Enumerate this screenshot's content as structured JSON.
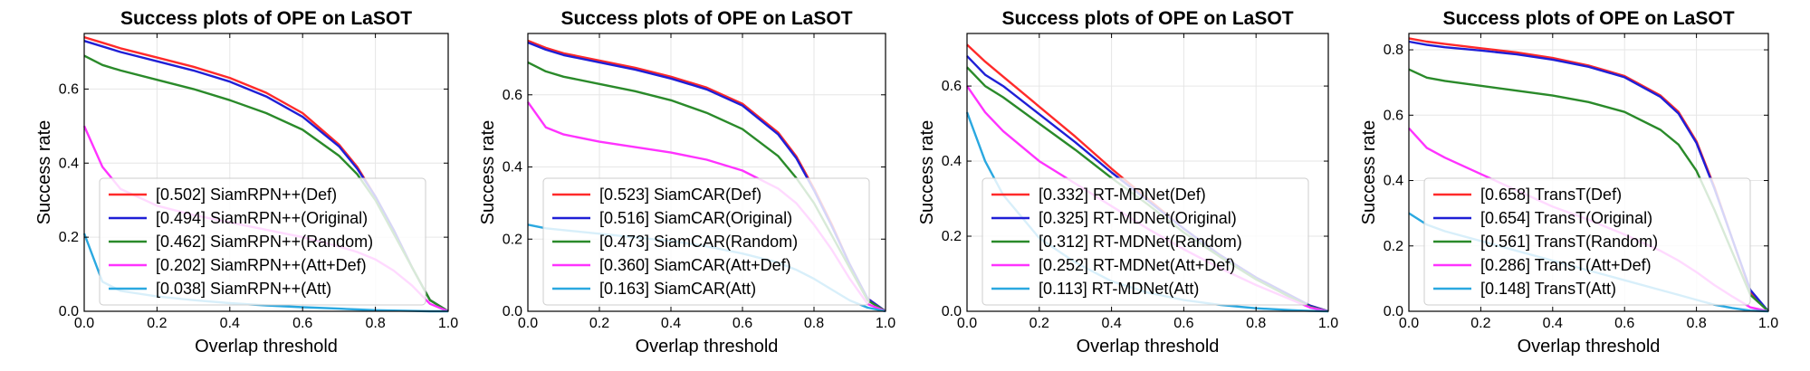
{
  "chart_data": [
    {
      "type": "line",
      "title": "Success plots of OPE on LaSOT",
      "xlabel": "Overlap threshold",
      "ylabel": "Success rate",
      "xlim": [
        0,
        1
      ],
      "ylim": [
        0,
        0.75
      ],
      "xticks": [
        "0.0",
        "0.2",
        "0.4",
        "0.6",
        "0.8",
        "1.0"
      ],
      "yticks": [
        "0.0",
        "0.2",
        "0.4",
        "0.6"
      ],
      "grid": true,
      "legend_position": "lower-left",
      "x": [
        0,
        0.05,
        0.1,
        0.2,
        0.3,
        0.4,
        0.5,
        0.6,
        0.7,
        0.75,
        0.8,
        0.85,
        0.9,
        0.95,
        1.0
      ],
      "series": [
        {
          "name": "[0.502] SiamRPN++(Def)",
          "color": "#ff2a2a",
          "values": [
            0.74,
            0.725,
            0.71,
            0.685,
            0.66,
            0.63,
            0.59,
            0.535,
            0.45,
            0.39,
            0.31,
            0.22,
            0.12,
            0.03,
            0.0
          ]
        },
        {
          "name": "[0.494] SiamRPN++(Original)",
          "color": "#1f1fd6",
          "values": [
            0.73,
            0.715,
            0.7,
            0.675,
            0.65,
            0.62,
            0.58,
            0.525,
            0.445,
            0.385,
            0.31,
            0.22,
            0.12,
            0.03,
            0.0
          ]
        },
        {
          "name": "[0.462] SiamRPN++(Random)",
          "color": "#2a8a2a",
          "values": [
            0.69,
            0.665,
            0.65,
            0.625,
            0.6,
            0.57,
            0.535,
            0.49,
            0.42,
            0.37,
            0.3,
            0.21,
            0.12,
            0.03,
            0.0
          ]
        },
        {
          "name": "[0.202] SiamRPN++(Att+Def)",
          "color": "#ff33ff",
          "values": [
            0.5,
            0.39,
            0.33,
            0.285,
            0.26,
            0.24,
            0.22,
            0.2,
            0.175,
            0.16,
            0.14,
            0.11,
            0.07,
            0.02,
            0.0
          ]
        },
        {
          "name": "[0.038] SiamRPN++(Att)",
          "color": "#2aa8e0",
          "values": [
            0.21,
            0.08,
            0.055,
            0.04,
            0.03,
            0.022,
            0.016,
            0.011,
            0.007,
            0.005,
            0.003,
            0.002,
            0.001,
            0.0,
            0.0
          ]
        }
      ]
    },
    {
      "type": "line",
      "title": "Success plots of OPE on LaSOT",
      "xlabel": "Overlap threshold",
      "ylabel": "Success rate",
      "xlim": [
        0,
        1
      ],
      "ylim": [
        0,
        0.77
      ],
      "xticks": [
        "0.0",
        "0.2",
        "0.4",
        "0.6",
        "0.8",
        "1.0"
      ],
      "yticks": [
        "0.0",
        "0.2",
        "0.4",
        "0.6"
      ],
      "grid": true,
      "legend_position": "lower-left",
      "x": [
        0,
        0.05,
        0.1,
        0.2,
        0.3,
        0.4,
        0.5,
        0.6,
        0.7,
        0.75,
        0.8,
        0.85,
        0.9,
        0.95,
        1.0
      ],
      "series": [
        {
          "name": "[0.523] SiamCAR(Def)",
          "color": "#ff2a2a",
          "values": [
            0.75,
            0.73,
            0.715,
            0.695,
            0.675,
            0.65,
            0.62,
            0.575,
            0.495,
            0.43,
            0.34,
            0.24,
            0.13,
            0.035,
            0.0
          ]
        },
        {
          "name": "[0.516] SiamCAR(Original)",
          "color": "#1f1fd6",
          "values": [
            0.745,
            0.725,
            0.71,
            0.69,
            0.67,
            0.645,
            0.615,
            0.57,
            0.49,
            0.425,
            0.335,
            0.235,
            0.13,
            0.035,
            0.0
          ]
        },
        {
          "name": "[0.473] SiamCAR(Random)",
          "color": "#2a8a2a",
          "values": [
            0.69,
            0.665,
            0.65,
            0.63,
            0.61,
            0.585,
            0.55,
            0.505,
            0.43,
            0.37,
            0.3,
            0.21,
            0.12,
            0.03,
            0.0
          ]
        },
        {
          "name": "[0.360] SiamCAR(Att+Def)",
          "color": "#ff33ff",
          "values": [
            0.58,
            0.51,
            0.49,
            0.47,
            0.455,
            0.44,
            0.42,
            0.39,
            0.34,
            0.3,
            0.24,
            0.17,
            0.09,
            0.02,
            0.0
          ]
        },
        {
          "name": "[0.163] SiamCAR(Att)",
          "color": "#2aa8e0",
          "values": [
            0.24,
            0.23,
            0.225,
            0.215,
            0.205,
            0.195,
            0.18,
            0.16,
            0.135,
            0.115,
            0.09,
            0.06,
            0.03,
            0.01,
            0.0
          ]
        }
      ]
    },
    {
      "type": "line",
      "title": "Success plots of OPE on LaSOT",
      "xlabel": "Overlap threshold",
      "ylabel": "Success rate",
      "xlim": [
        0,
        1
      ],
      "ylim": [
        0,
        0.74
      ],
      "xticks": [
        "0.0",
        "0.2",
        "0.4",
        "0.6",
        "0.8",
        "1.0"
      ],
      "yticks": [
        "0.0",
        "0.2",
        "0.4",
        "0.6"
      ],
      "grid": true,
      "legend_position": "lower-left",
      "x": [
        0,
        0.05,
        0.1,
        0.2,
        0.3,
        0.4,
        0.5,
        0.6,
        0.7,
        0.8,
        0.9,
        0.95,
        1.0
      ],
      "series": [
        {
          "name": "[0.332] RT-MDNet(Def)",
          "color": "#ff2a2a",
          "values": [
            0.71,
            0.665,
            0.625,
            0.545,
            0.465,
            0.38,
            0.3,
            0.22,
            0.15,
            0.09,
            0.04,
            0.015,
            0.0
          ]
        },
        {
          "name": "[0.325] RT-MDNet(Original)",
          "color": "#1f1fd6",
          "values": [
            0.68,
            0.63,
            0.6,
            0.525,
            0.45,
            0.37,
            0.295,
            0.22,
            0.15,
            0.09,
            0.04,
            0.015,
            0.0
          ]
        },
        {
          "name": "[0.312] RT-MDNet(Random)",
          "color": "#2a8a2a",
          "values": [
            0.65,
            0.6,
            0.57,
            0.5,
            0.43,
            0.355,
            0.285,
            0.21,
            0.145,
            0.085,
            0.035,
            0.012,
            0.0
          ]
        },
        {
          "name": "[0.252] RT-MDNet(Att+Def)",
          "color": "#ff33ff",
          "values": [
            0.6,
            0.53,
            0.48,
            0.4,
            0.34,
            0.28,
            0.22,
            0.165,
            0.115,
            0.07,
            0.03,
            0.01,
            0.0
          ]
        },
        {
          "name": "[0.113] RT-MDNet(Att)",
          "color": "#2aa8e0",
          "values": [
            0.53,
            0.4,
            0.31,
            0.195,
            0.13,
            0.08,
            0.05,
            0.03,
            0.017,
            0.008,
            0.003,
            0.001,
            0.0
          ]
        }
      ]
    },
    {
      "type": "line",
      "title": "Success plots of OPE on LaSOT",
      "xlabel": "Overlap threshold",
      "ylabel": "Success rate",
      "xlim": [
        0,
        1
      ],
      "ylim": [
        0,
        0.85
      ],
      "xticks": [
        "0.0",
        "0.2",
        "0.4",
        "0.6",
        "0.8",
        "1.0"
      ],
      "yticks": [
        "0.0",
        "0.2",
        "0.4",
        "0.6",
        "0.8"
      ],
      "grid": true,
      "legend_position": "lower-left",
      "x": [
        0,
        0.05,
        0.1,
        0.2,
        0.3,
        0.4,
        0.5,
        0.6,
        0.7,
        0.75,
        0.8,
        0.85,
        0.9,
        0.95,
        1.0
      ],
      "series": [
        {
          "name": "[0.658] TransT(Def)",
          "color": "#ff2a2a",
          "values": [
            0.835,
            0.825,
            0.818,
            0.805,
            0.792,
            0.775,
            0.752,
            0.72,
            0.66,
            0.61,
            0.52,
            0.38,
            0.22,
            0.06,
            0.0
          ]
        },
        {
          "name": "[0.654] TransT(Original)",
          "color": "#1f1fd6",
          "values": [
            0.825,
            0.815,
            0.808,
            0.798,
            0.786,
            0.77,
            0.748,
            0.716,
            0.656,
            0.605,
            0.515,
            0.375,
            0.22,
            0.065,
            0.0
          ]
        },
        {
          "name": "[0.561] TransT(Random)",
          "color": "#2a8a2a",
          "values": [
            0.74,
            0.715,
            0.705,
            0.69,
            0.675,
            0.66,
            0.64,
            0.61,
            0.555,
            0.51,
            0.43,
            0.31,
            0.18,
            0.05,
            0.0
          ]
        },
        {
          "name": "[0.286] TransT(Att+Def)",
          "color": "#ff33ff",
          "values": [
            0.56,
            0.5,
            0.47,
            0.42,
            0.37,
            0.32,
            0.28,
            0.235,
            0.185,
            0.155,
            0.12,
            0.08,
            0.045,
            0.012,
            0.0
          ]
        },
        {
          "name": "[0.148] TransT(Att)",
          "color": "#2aa8e0",
          "values": [
            0.3,
            0.265,
            0.245,
            0.215,
            0.185,
            0.155,
            0.125,
            0.095,
            0.065,
            0.05,
            0.035,
            0.02,
            0.01,
            0.002,
            0.0
          ]
        }
      ]
    }
  ]
}
